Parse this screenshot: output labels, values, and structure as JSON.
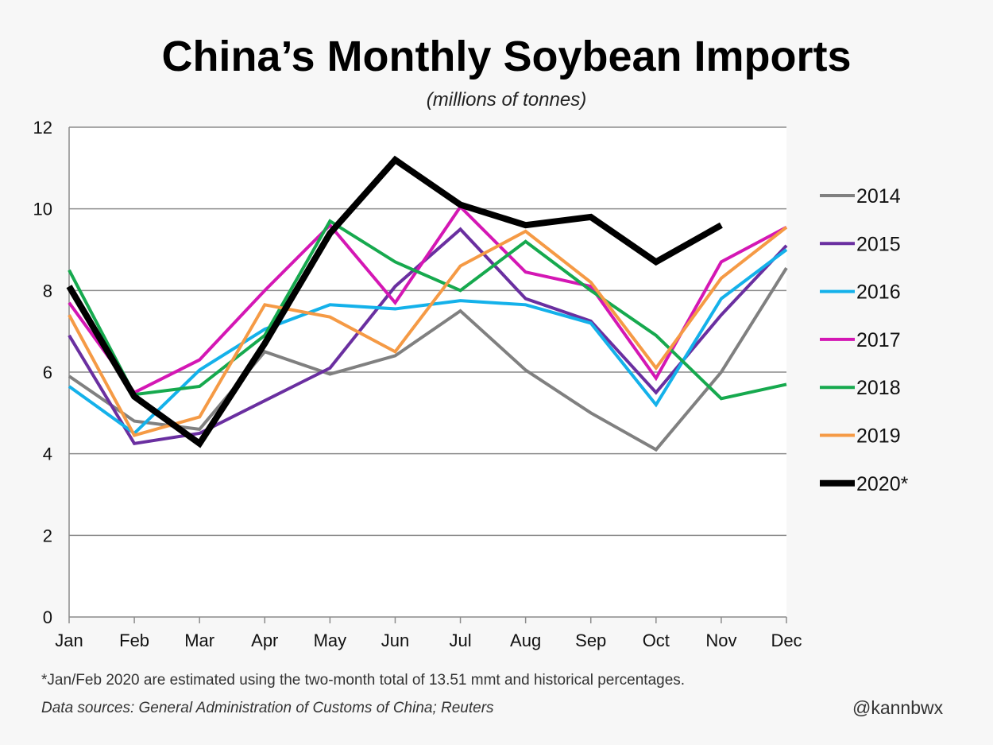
{
  "chart_data": {
    "type": "line",
    "title": "China’s Monthly Soybean Imports",
    "subtitle": "(millions of tonnes)",
    "categories": [
      "Jan",
      "Feb",
      "Mar",
      "Apr",
      "May",
      "Jun",
      "Jul",
      "Aug",
      "Sep",
      "Oct",
      "Nov",
      "Dec"
    ],
    "ylim": [
      0,
      12
    ],
    "yticks": [
      0,
      2,
      4,
      6,
      8,
      10,
      12
    ],
    "grid": "horizontal",
    "legend": "right",
    "series": [
      {
        "name": "2014",
        "color": "#808080",
        "values": [
          5.9,
          4.8,
          4.6,
          6.5,
          5.95,
          6.4,
          7.5,
          6.05,
          5.0,
          4.1,
          6.0,
          8.55
        ]
      },
      {
        "name": "2015",
        "color": "#6a2fa0",
        "values": [
          6.9,
          4.25,
          4.5,
          5.3,
          6.1,
          8.1,
          9.5,
          7.8,
          7.25,
          5.5,
          7.4,
          9.1
        ]
      },
      {
        "name": "2016",
        "color": "#14b1ea",
        "values": [
          5.65,
          4.5,
          6.05,
          7.05,
          7.65,
          7.55,
          7.75,
          7.65,
          7.2,
          5.2,
          7.8,
          9.0
        ]
      },
      {
        "name": "2017",
        "color": "#d417b4",
        "values": [
          7.7,
          5.5,
          6.3,
          8.0,
          9.6,
          7.7,
          10.05,
          8.45,
          8.1,
          5.85,
          8.7,
          9.55
        ]
      },
      {
        "name": "2018",
        "color": "#16a94e",
        "values": [
          8.5,
          5.45,
          5.65,
          6.9,
          9.7,
          8.7,
          8.0,
          9.2,
          8.0,
          6.9,
          5.35,
          5.7
        ]
      },
      {
        "name": "2019",
        "color": "#f59a45",
        "values": [
          7.4,
          4.45,
          4.9,
          7.65,
          7.35,
          6.5,
          8.6,
          9.45,
          8.2,
          6.1,
          8.3,
          9.55
        ]
      },
      {
        "name": "2020*",
        "color": "#000000",
        "values": [
          8.1,
          5.4,
          4.25,
          6.7,
          9.4,
          11.2,
          10.1,
          9.6,
          9.8,
          8.7,
          9.6,
          null
        ]
      }
    ]
  },
  "footnote": "*Jan/Feb 2020 are estimated using the two-month total of 13.51 mmt and historical percentages.",
  "source": "Data sources: General Administration of Customs of China; Reuters",
  "handle": "@kannbwx"
}
